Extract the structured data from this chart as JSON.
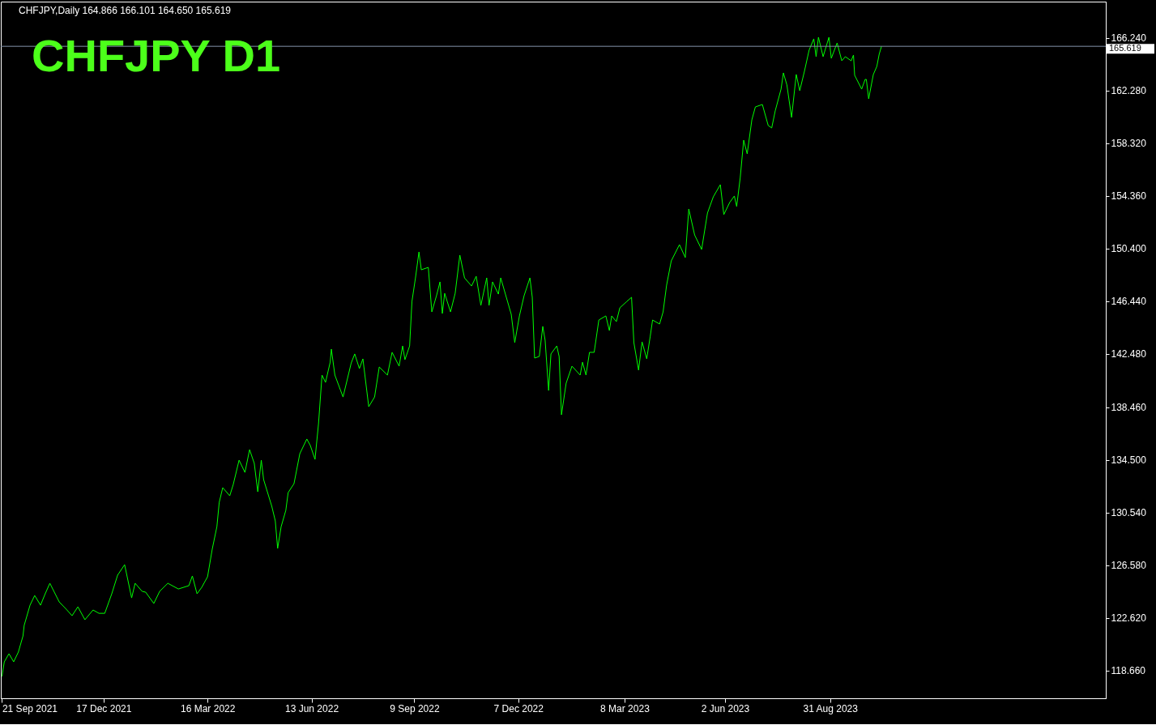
{
  "chart_data": {
    "type": "line",
    "title": "CHFJPY  D1",
    "annotations": [
      "CHFJPY,Daily 164.866 166.101 164.650 165.619"
    ],
    "x": [
      "2021-09-21",
      "2021-09-23",
      "2021-09-27",
      "2021-10-01",
      "2021-10-05",
      "2021-10-09",
      "2021-10-10",
      "2021-10-15",
      "2021-10-19",
      "2021-10-24",
      "2021-10-28",
      "2021-11-01",
      "2021-11-09",
      "2021-11-15",
      "2021-11-20",
      "2021-11-25",
      "2021-12-01",
      "2021-12-08",
      "2021-12-13",
      "2021-12-18",
      "2021-12-24",
      "2021-12-29",
      "2022-01-04",
      "2022-01-10",
      "2022-01-13",
      "2022-01-19",
      "2022-01-22",
      "2022-01-29",
      "2022-02-03",
      "2022-02-10",
      "2022-02-19",
      "2022-02-28",
      "2022-03-03",
      "2022-03-07",
      "2022-03-11",
      "2022-03-16",
      "2022-03-20",
      "2022-03-24",
      "2022-03-26",
      "2022-03-29",
      "2022-04-04",
      "2022-04-07",
      "2022-04-12",
      "2022-04-17",
      "2022-04-21",
      "2022-04-25",
      "2022-04-28",
      "2022-05-01",
      "2022-05-03",
      "2022-05-10",
      "2022-05-13",
      "2022-05-15",
      "2022-05-18",
      "2022-05-22",
      "2022-05-24",
      "2022-05-29",
      "2022-06-03",
      "2022-06-09",
      "2022-06-12",
      "2022-06-16",
      "2022-06-19",
      "2022-06-22",
      "2022-06-25",
      "2022-06-29",
      "2022-06-30",
      "2022-07-03",
      "2022-07-10",
      "2022-07-15",
      "2022-07-17",
      "2022-07-20",
      "2022-07-24",
      "2022-07-27",
      "2022-08-01",
      "2022-08-06",
      "2022-08-10",
      "2022-08-17",
      "2022-08-21",
      "2022-08-27",
      "2022-08-30",
      "2022-09-01",
      "2022-09-05",
      "2022-09-07",
      "2022-09-10",
      "2022-09-13",
      "2022-09-15",
      "2022-09-21",
      "2022-09-24",
      "2022-09-28",
      "2022-10-01",
      "2022-10-03",
      "2022-10-05",
      "2022-10-10",
      "2022-10-14",
      "2022-10-18",
      "2022-10-22",
      "2022-10-28",
      "2022-11-01",
      "2022-11-05",
      "2022-11-10",
      "2022-11-12",
      "2022-11-15",
      "2022-11-20",
      "2022-11-22",
      "2022-11-26",
      "2022-12-01",
      "2022-12-04",
      "2022-12-08",
      "2022-12-12",
      "2022-12-17",
      "2022-12-19",
      "2022-12-21",
      "2022-12-25",
      "2022-12-28",
      "2022-12-30",
      "2023-01-02",
      "2023-01-04",
      "2023-01-09",
      "2023-01-11",
      "2023-01-13",
      "2023-01-17",
      "2023-01-22",
      "2023-01-29",
      "2023-01-31",
      "2023-02-03",
      "2023-02-06",
      "2023-02-10",
      "2023-02-14",
      "2023-02-20",
      "2023-02-23",
      "2023-02-25",
      "2023-03-01",
      "2023-03-04",
      "2023-03-10",
      "2023-03-14",
      "2023-03-16",
      "2023-03-20",
      "2023-03-23",
      "2023-03-27",
      "2023-03-30",
      "2023-04-01",
      "2023-04-07",
      "2023-04-10",
      "2023-04-13",
      "2023-04-17",
      "2023-04-24",
      "2023-04-29",
      "2023-05-02",
      "2023-05-07",
      "2023-05-13",
      "2023-05-18",
      "2023-05-23",
      "2023-05-29",
      "2023-06-01",
      "2023-06-06",
      "2023-06-10",
      "2023-06-12",
      "2023-06-15",
      "2023-06-18",
      "2023-06-21",
      "2023-06-25",
      "2023-06-28",
      "2023-07-04",
      "2023-07-09",
      "2023-07-12",
      "2023-07-15",
      "2023-07-20",
      "2023-07-22",
      "2023-07-25",
      "2023-07-29",
      "2023-08-02",
      "2023-08-05",
      "2023-08-09",
      "2023-08-13",
      "2023-08-17",
      "2023-08-19",
      "2023-08-21",
      "2023-08-25",
      "2023-08-30",
      "2023-09-01",
      "2023-09-06",
      "2023-09-10",
      "2023-09-13",
      "2023-09-18",
      "2023-09-20",
      "2023-09-21",
      "2023-09-27",
      "2023-09-30",
      "2023-10-01",
      "2023-10-03",
      "2023-10-07",
      "2023-10-10",
      "2023-10-12",
      "2023-10-14"
    ],
    "series": [
      {
        "color": "#00ff00",
        "values": [
          118.22,
          119.32,
          119.93,
          119.32,
          120.05,
          121.27,
          122.06,
          123.58,
          124.31,
          123.58,
          124.44,
          125.23,
          123.83,
          123.28,
          122.79,
          123.46,
          122.49,
          123.22,
          122.97,
          122.97,
          124.44,
          125.84,
          126.63,
          124.13,
          125.23,
          124.62,
          124.56,
          123.71,
          124.62,
          125.23,
          124.8,
          125.05,
          125.78,
          124.44,
          124.92,
          125.72,
          127.79,
          129.49,
          131.32,
          132.42,
          131.81,
          132.66,
          134.49,
          133.57,
          135.28,
          134.25,
          132.11,
          134.49,
          133.03,
          131.02,
          129.92,
          127.85,
          129.49,
          130.71,
          132.05,
          132.72,
          134.98,
          136.08,
          135.59,
          134.55,
          137.23,
          140.89,
          140.34,
          141.86,
          142.84,
          140.89,
          139.24,
          141.07,
          141.8,
          142.48,
          141.38,
          142.11,
          138.51,
          139.24,
          141.5,
          140.89,
          142.6,
          141.56,
          143.08,
          142.05,
          143.08,
          146.43,
          148.2,
          150.15,
          148.81,
          148.99,
          145.64,
          146.86,
          147.9,
          145.52,
          147.04,
          145.64,
          147.04,
          149.91,
          148.2,
          147.59,
          148.32,
          146.13,
          148.2,
          146.13,
          147.9,
          146.98,
          148.2,
          146.98,
          145.46,
          143.33,
          145.34,
          146.86,
          148.2,
          146.74,
          142.17,
          142.29,
          144.55,
          143.51,
          139.73,
          142.48,
          143.08,
          142.29,
          137.9,
          140.28,
          141.56,
          140.89,
          141.86,
          140.89,
          142.6,
          142.6,
          145.03,
          145.34,
          144.24,
          145.34,
          144.91,
          145.95,
          146.43,
          146.74,
          143.33,
          141.26,
          143.39,
          142.11,
          143.81,
          145.03,
          144.73,
          145.64,
          147.65,
          149.48,
          150.7,
          149.73,
          153.38,
          151.43,
          150.34,
          153.08,
          154.3,
          155.21,
          152.96,
          153.87,
          154.36,
          153.57,
          155.7,
          158.56,
          157.53,
          160.09,
          161.06,
          161.24,
          159.66,
          159.48,
          160.76,
          162.4,
          163.62,
          162.71,
          160.27,
          163.5,
          162.28,
          163.74,
          165.33,
          166.18,
          164.84,
          166.3,
          164.84,
          166.3,
          164.72,
          165.87,
          164.53,
          164.84,
          164.53,
          164.96,
          163.44,
          162.4,
          163.13,
          163.13,
          161.67,
          163.5,
          164.11,
          165.02,
          165.619
        ]
      }
    ],
    "xlim": [
      "2021-09-20",
      "2024-04-23"
    ],
    "xticks": [
      {
        "value": "2021-09-21",
        "label": "21 Sep 2021"
      },
      {
        "value": "2021-12-17",
        "label": "17 Dec 2021"
      },
      {
        "value": "2022-03-16",
        "label": "16 Mar 2022"
      },
      {
        "value": "2022-06-13",
        "label": "13 Jun 2022"
      },
      {
        "value": "2022-09-09",
        "label": "9 Sep 2022"
      },
      {
        "value": "2022-12-07",
        "label": "7 Dec 2022"
      },
      {
        "value": "2023-03-08",
        "label": "8 Mar 2023"
      },
      {
        "value": "2023-06-02",
        "label": "2 Jun 2023"
      },
      {
        "value": "2023-08-31",
        "label": "31 Aug 2023"
      }
    ],
    "ylim": [
      116.58,
      168.98
    ],
    "yticks": [
      {
        "value": 118.66,
        "label": "118.660"
      },
      {
        "value": 122.62,
        "label": "122.620"
      },
      {
        "value": 126.58,
        "label": "126.580"
      },
      {
        "value": 130.54,
        "label": "130.540"
      },
      {
        "value": 134.5,
        "label": "134.500"
      },
      {
        "value": 138.46,
        "label": "138.460"
      },
      {
        "value": 142.48,
        "label": "142.480"
      },
      {
        "value": 146.44,
        "label": "146.440"
      },
      {
        "value": 150.4,
        "label": "150.400"
      },
      {
        "value": 154.36,
        "label": "154.360"
      },
      {
        "value": 158.32,
        "label": "158.320"
      },
      {
        "value": 162.28,
        "label": "162.280"
      },
      {
        "value": 166.24,
        "label": "166.240"
      }
    ],
    "ref_lines": [
      {
        "axis": "y",
        "value": 165.619,
        "label": "165.619",
        "color": "#8494aa"
      }
    ]
  }
}
